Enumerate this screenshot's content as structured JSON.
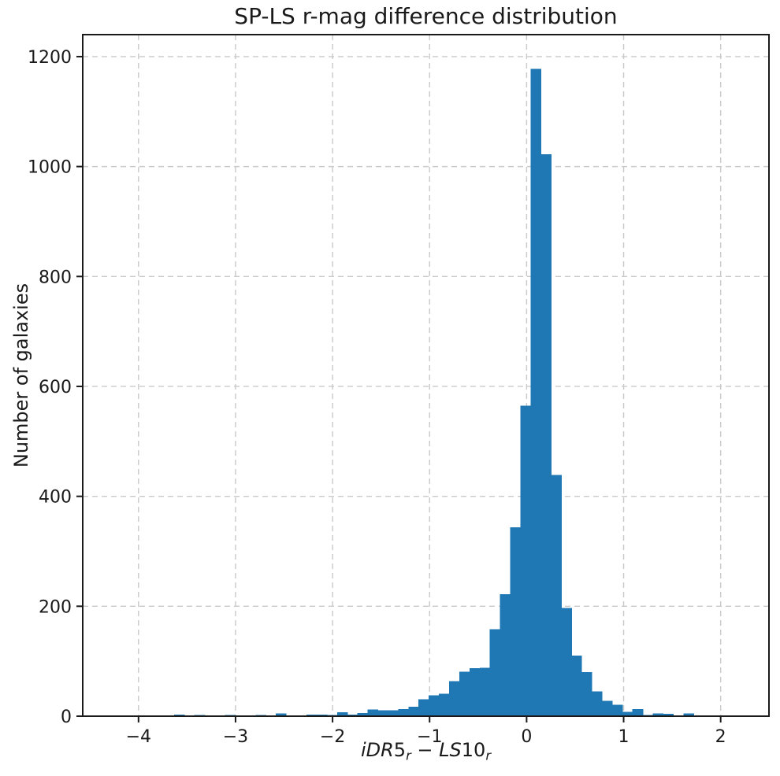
{
  "title": "SP-LS r-mag difference distribution",
  "x_axis": {
    "label_plain": "iDR5r − LS10r",
    "label_parts": [
      {
        "text": "iDR",
        "italic": true,
        "sub": false
      },
      {
        "text": "5",
        "italic": false,
        "sub": false
      },
      {
        "text": "r",
        "italic": true,
        "sub": true
      },
      {
        "text": " − ",
        "italic": false,
        "sub": false
      },
      {
        "text": "LS",
        "italic": true,
        "sub": false
      },
      {
        "text": "10",
        "italic": false,
        "sub": false
      },
      {
        "text": "r",
        "italic": true,
        "sub": true
      }
    ],
    "tick_values": [
      -4,
      -3,
      -2,
      -1,
      0,
      1,
      2
    ],
    "tick_labels": [
      "−4",
      "−3",
      "−2",
      "−1",
      "0",
      "1",
      "2"
    ]
  },
  "y_axis": {
    "label": "Number of galaxies",
    "tick_values": [
      0,
      200,
      400,
      600,
      800,
      1000,
      1200
    ],
    "tick_labels": [
      "0",
      "200",
      "400",
      "600",
      "800",
      "1000",
      "1200"
    ]
  },
  "colors": {
    "bar": "#1f77b4",
    "grid": "#c9c9c9",
    "spine": "#1a1a1a",
    "text": "#1a1a1a",
    "background": "#ffffff"
  },
  "chart_data": {
    "type": "bar",
    "subtype": "histogram",
    "title": "SP-LS r-mag difference distribution",
    "xlabel": "iDR5r − LS10r",
    "ylabel": "Number of galaxies",
    "xlim": [
      -4.575,
      2.498
    ],
    "ylim": [
      0,
      1240
    ],
    "x_ticks": [
      -4,
      -3,
      -2,
      -1,
      0,
      1,
      2
    ],
    "y_ticks": [
      0,
      200,
      400,
      600,
      800,
      1000,
      1200
    ],
    "grid": {
      "visible": true,
      "style": "dashed",
      "axes": "both"
    },
    "legend": "none",
    "bins": {
      "first_edge": -4.264,
      "width": 0.105,
      "n": 62
    },
    "counts": [
      0,
      0,
      0,
      0,
      0,
      0,
      3,
      0,
      2,
      0,
      0,
      2,
      0,
      0,
      2,
      0,
      5,
      0,
      0,
      3,
      3,
      2,
      7,
      3,
      6,
      12,
      11,
      11,
      13,
      17,
      31,
      38,
      41,
      64,
      81,
      87,
      88,
      158,
      222,
      344,
      565,
      1178,
      1022,
      439,
      197,
      110,
      80,
      45,
      28,
      21,
      8,
      13,
      2,
      5,
      4,
      1,
      5,
      0,
      0,
      0,
      0,
      0
    ],
    "peak_bin": {
      "range": [
        0.041,
        0.146
      ],
      "count": 1178
    }
  }
}
